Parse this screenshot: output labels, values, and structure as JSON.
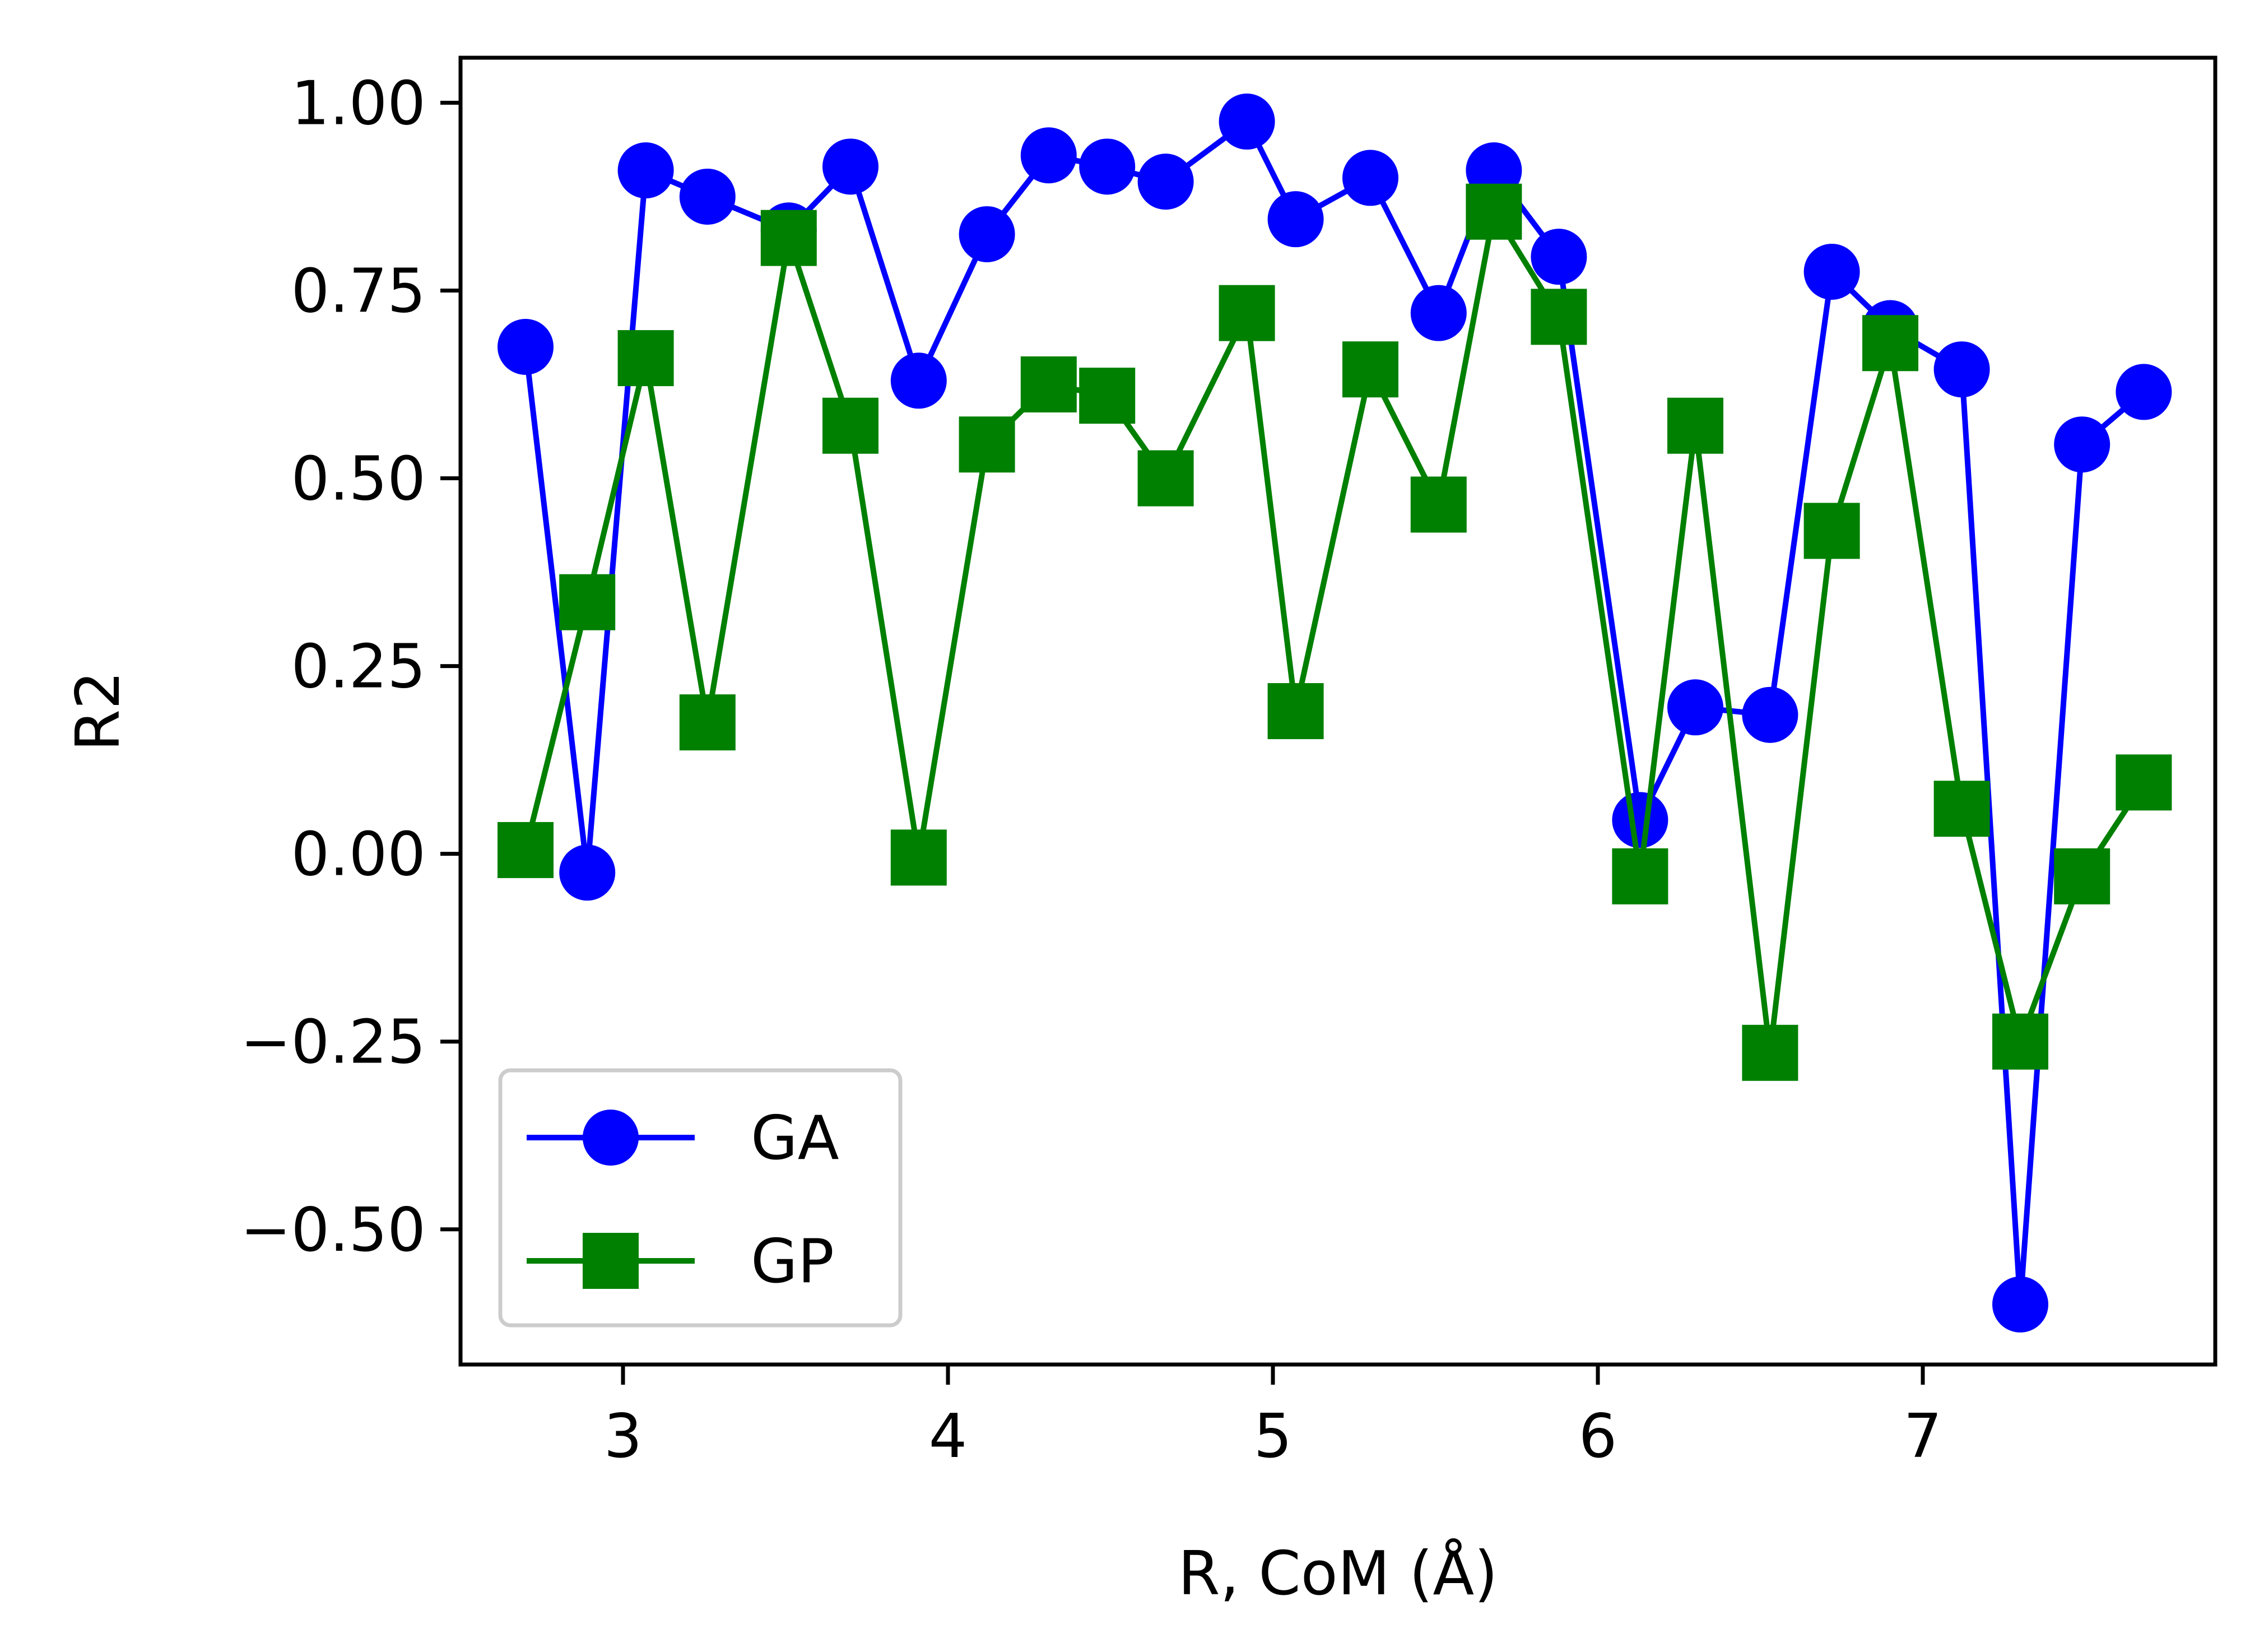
{
  "chart_data": {
    "type": "line",
    "title": "",
    "xlabel": "R, CoM (Å)",
    "ylabel": "R2",
    "xlim": [
      2.5,
      7.9
    ],
    "ylim": [
      -0.68,
      1.06
    ],
    "xticks": [
      3,
      4,
      5,
      6,
      7
    ],
    "xtick_labels": [
      "3",
      "4",
      "5",
      "6",
      "7"
    ],
    "yticks": [
      1.0,
      0.75,
      0.5,
      0.25,
      0.0,
      -0.25,
      -0.5
    ],
    "ytick_labels": [
      "1.00",
      "0.75",
      "0.50",
      "0.25",
      "0.00",
      "−0.25",
      "−0.50"
    ],
    "grid": false,
    "legend_position": "lower-left",
    "series": [
      {
        "name": "GA",
        "color": "#0000ff",
        "marker": "circle",
        "x": [
          2.7,
          2.89,
          3.07,
          3.26,
          3.51,
          3.7,
          3.91,
          4.12,
          4.31,
          4.49,
          4.67,
          4.92,
          5.07,
          5.3,
          5.51,
          5.68,
          5.88,
          6.13,
          6.3,
          6.53,
          6.72,
          6.9,
          7.12,
          7.3,
          7.49,
          7.68
        ],
        "y": [
          0.675,
          -0.025,
          0.91,
          0.875,
          0.83,
          0.915,
          0.63,
          0.825,
          0.93,
          0.915,
          0.895,
          0.975,
          0.845,
          0.9,
          0.72,
          0.91,
          0.795,
          0.045,
          0.195,
          0.185,
          0.775,
          0.7,
          0.645,
          -0.6,
          0.545,
          0.615
        ]
      },
      {
        "name": "GP",
        "color": "#008000",
        "marker": "square",
        "x": [
          2.7,
          2.89,
          3.07,
          3.26,
          3.51,
          3.7,
          3.91,
          4.12,
          4.31,
          4.49,
          4.67,
          4.92,
          5.07,
          5.3,
          5.51,
          5.68,
          5.88,
          6.13,
          6.3,
          6.53,
          6.72,
          6.9,
          7.12,
          7.3,
          7.49,
          7.68
        ],
        "y": [
          0.005,
          0.335,
          0.66,
          0.175,
          0.82,
          0.57,
          -0.005,
          0.545,
          0.625,
          0.61,
          0.5,
          0.72,
          0.19,
          0.645,
          0.465,
          0.855,
          0.715,
          -0.03,
          0.57,
          -0.265,
          0.43,
          0.68,
          0.06,
          -0.25,
          -0.03,
          0.095
        ]
      }
    ]
  }
}
